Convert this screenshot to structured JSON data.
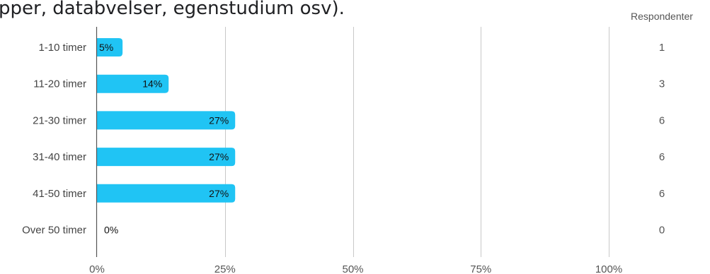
{
  "question_partial": "pper, databvelser, egenstudium osv).",
  "chart_data": {
    "type": "bar",
    "orientation": "horizontal",
    "categories": [
      "1-10 timer",
      "11-20 timer",
      "21-30 timer",
      "31-40 timer",
      "41-50 timer",
      "Over 50 timer"
    ],
    "values": [
      5,
      14,
      27,
      27,
      27,
      0
    ],
    "value_labels": [
      "5%",
      "14%",
      "27%",
      "27%",
      "27%",
      "0%"
    ],
    "respondents_header": "Respondenter",
    "respondents": [
      1,
      3,
      6,
      6,
      6,
      0
    ],
    "xlim": [
      0,
      100
    ],
    "x_ticks": [
      0,
      25,
      50,
      75,
      100
    ],
    "x_tick_labels": [
      "0%",
      "25%",
      "50%",
      "75%",
      "100%"
    ],
    "grid": true,
    "bar_color": "#20c4f4"
  }
}
